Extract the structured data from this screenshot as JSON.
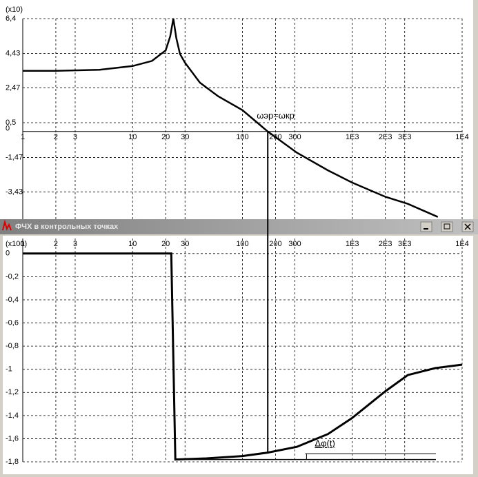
{
  "window_title": "ФЧХ в контрольных точках",
  "chart_data": [
    {
      "type": "line",
      "y_unit_label": "(x10)",
      "xscale": "log",
      "grid": true,
      "xlim": [
        1,
        10000
      ],
      "xticks": [
        1,
        2,
        3,
        10,
        20,
        30,
        100,
        200,
        300,
        {
          "value": 1000,
          "label": "1E3"
        },
        {
          "value": 2000,
          "label": "2E3"
        },
        {
          "value": 3000,
          "label": "3E3"
        },
        {
          "value": 10000,
          "label": "1E4"
        }
      ],
      "ylim": [
        -5.4,
        6.4
      ],
      "yticks": [
        {
          "value": 6.4,
          "label": "6,4"
        },
        {
          "value": 4.43,
          "label": "4,43"
        },
        {
          "value": 2.47,
          "label": "2,47"
        },
        {
          "value": 0.5,
          "label": "0,5"
        },
        0,
        {
          "value": -1.47,
          "label": "-1,47"
        },
        {
          "value": -3.43,
          "label": "-3,43"
        }
      ],
      "annotations": [
        {
          "text": "ωэр=ωкр",
          "x": 170
        }
      ],
      "series": [
        {
          "color": "#000000",
          "x": [
            1,
            2,
            5,
            10,
            15,
            20,
            22,
            23.5,
            25,
            27,
            30,
            41,
            60,
            100,
            170,
            313,
            600,
            1000,
            2000,
            3200,
            6000
          ],
          "values": [
            3.44,
            3.44,
            3.5,
            3.71,
            4.0,
            4.6,
            5.4,
            6.4,
            5.3,
            4.4,
            3.9,
            2.77,
            2.0,
            1.21,
            0,
            -1.2,
            -2.2,
            -2.9,
            -3.7,
            -4.1,
            -4.84
          ]
        }
      ]
    },
    {
      "type": "line",
      "y_unit_label": "(x100)",
      "xscale": "log",
      "grid": true,
      "xlim": [
        1,
        10000
      ],
      "xticks": [
        1,
        2,
        3,
        10,
        20,
        30,
        100,
        200,
        300,
        {
          "value": 1000,
          "label": "1E3"
        },
        {
          "value": 2000,
          "label": "2E3"
        },
        {
          "value": 3000,
          "label": "3E3"
        },
        {
          "value": 10000,
          "label": "1E4"
        }
      ],
      "ylim": [
        -1.8,
        0.13
      ],
      "yticks": [
        0,
        {
          "value": -0.2,
          "label": "-0,2"
        },
        {
          "value": -0.4,
          "label": "-0,4"
        },
        {
          "value": -0.6,
          "label": "-0,6"
        },
        {
          "value": -0.8,
          "label": "-0,8"
        },
        -1,
        {
          "value": -1.2,
          "label": "-1,2"
        },
        {
          "value": -1.4,
          "label": "-1,4"
        },
        {
          "value": -1.6,
          "label": "-1,6"
        },
        {
          "value": -1.8,
          "label": "-1,8"
        }
      ],
      "annotations": [
        {
          "text": "Δφ(t)",
          "x": 313,
          "y": [
            -1.78,
            -1.73
          ]
        }
      ],
      "series": [
        {
          "color": "#000000",
          "x": [
            1,
            10,
            22.5,
            24.5,
            47,
            100,
            170,
            313,
            600,
            1000,
            2000,
            3200,
            5700,
            10000
          ],
          "values": [
            0,
            0,
            0,
            -1.78,
            -1.77,
            -1.75,
            -1.72,
            -1.67,
            -1.56,
            -1.42,
            -1.19,
            -1.05,
            -0.99,
            -0.96
          ]
        }
      ]
    }
  ]
}
